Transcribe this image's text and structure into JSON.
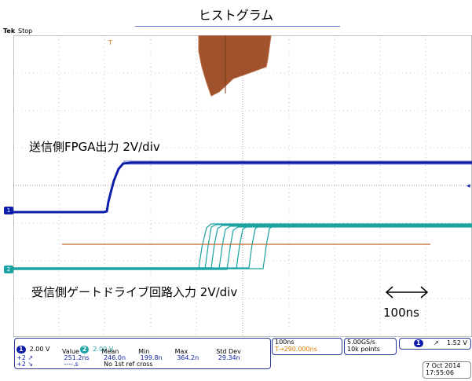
{
  "annotation_title": "ヒストグラム",
  "scope": {
    "brand": "Tek",
    "status": "Stop",
    "trigger_marker": "T"
  },
  "notes": {
    "tx": "送信側FPGA出力 2V/div",
    "rx": "受信側ゲートドライブ回路入力 2V/div",
    "timescale": "100ns"
  },
  "channels": [
    {
      "id": "1",
      "color": "#0d1fa8",
      "scale": "2.00 V"
    },
    {
      "id": "2",
      "color": "#1aa3a3",
      "scale": "2.00 V"
    }
  ],
  "histogram_color": "#a0522d",
  "measurements": {
    "headers": [
      "Value",
      "Mean",
      "Min",
      "Max",
      "Std Dev"
    ],
    "rows": [
      {
        "label": "+2 ↗",
        "value": "251.2ns",
        "mean": "246.0n",
        "min": "199.8n",
        "max": "364.2n",
        "std": "29.34n"
      },
      {
        "label": "+2 ↘",
        "value": "----.s",
        "note": "No 1st ref cross"
      }
    ]
  },
  "timebase": {
    "horizontal": "100ns",
    "position": "290.000ns"
  },
  "acquisition": {
    "sample_rate": "5.00GS/s",
    "record_length": "10k points"
  },
  "trigger": {
    "channel": "1",
    "slope": "↗",
    "level": "1.52 V"
  },
  "datetime": {
    "date": "7 Oct  2014",
    "time": "17:55:06"
  }
}
